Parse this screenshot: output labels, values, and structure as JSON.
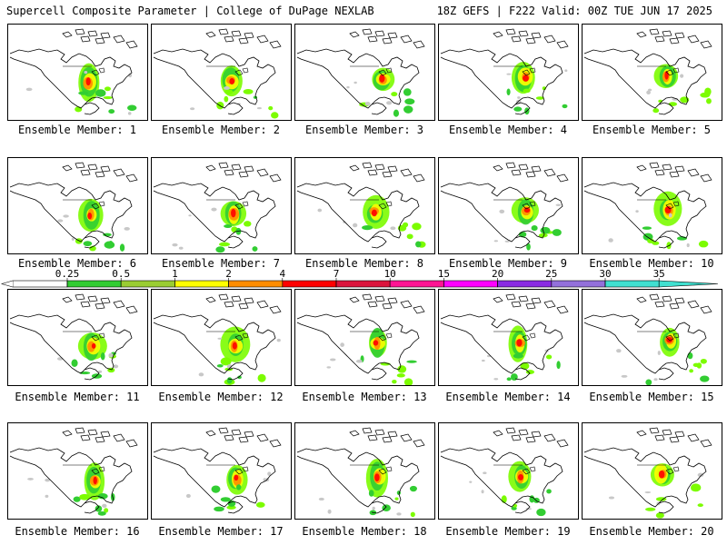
{
  "header": {
    "title": "Supercell Composite Parameter | College of DuPage NEXLAB",
    "run_info": "18Z GEFS | F222 Valid: 00Z TUE JUN 17 2025"
  },
  "panels": [
    {
      "label": "Ensemble Member: 1"
    },
    {
      "label": "Ensemble Member: 2"
    },
    {
      "label": "Ensemble Member: 3"
    },
    {
      "label": "Ensemble Member: 4"
    },
    {
      "label": "Ensemble Member: 5"
    },
    {
      "label": "Ensemble Member: 6"
    },
    {
      "label": "Ensemble Member: 7"
    },
    {
      "label": "Ensemble Member: 8"
    },
    {
      "label": "Ensemble Member: 9"
    },
    {
      "label": "Ensemble Member: 10"
    },
    {
      "label": "Ensemble Member: 11"
    },
    {
      "label": "Ensemble Member: 12"
    },
    {
      "label": "Ensemble Member: 13"
    },
    {
      "label": "Ensemble Member: 14"
    },
    {
      "label": "Ensemble Member: 15"
    },
    {
      "label": "Ensemble Member: 16"
    },
    {
      "label": "Ensemble Member: 17"
    },
    {
      "label": "Ensemble Member: 18"
    },
    {
      "label": "Ensemble Member: 19"
    },
    {
      "label": "Ensemble Member: 20"
    }
  ],
  "colorbar": {
    "ticks": [
      "0.25",
      "0.5",
      "1",
      "2",
      "4",
      "7",
      "10",
      "15",
      "20",
      "25",
      "30",
      "35"
    ],
    "colors": [
      "#ffffff",
      "#32cd32",
      "#9acd32",
      "#ffff00",
      "#ff8c00",
      "#ff0000",
      "#dc143c",
      "#ff1493",
      "#ff00ff",
      "#8a2be2",
      "#9370db",
      "#40e0d0"
    ]
  }
}
